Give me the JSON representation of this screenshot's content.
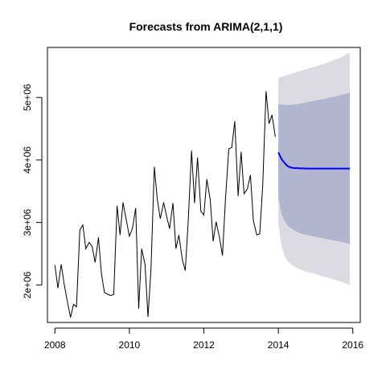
{
  "chart_data": {
    "type": "line",
    "title": "Forecasts from ARIMA(2,1,1)",
    "xlabel": "",
    "ylabel": "",
    "xlim": [
      2007.8,
      2016.2
    ],
    "ylim": [
      1400000,
      5800000
    ],
    "x_ticks": [
      2008,
      2010,
      2012,
      2014,
      2016
    ],
    "x_tick_labels": [
      "2008",
      "2010",
      "2012",
      "2014",
      "2016"
    ],
    "y_ticks": [
      2000000,
      3000000,
      4000000,
      5000000
    ],
    "y_tick_labels": [
      "2e+06",
      "3e+06",
      "4e+06",
      "5e+06"
    ],
    "grid": false,
    "legend": "none",
    "colors": {
      "series": "#000000",
      "forecast": "#0000ff",
      "band80": "#b1b5d0",
      "band95": "#dbdbe1"
    },
    "series": [
      {
        "role": "observed",
        "x": [
          2008.0,
          2008.08,
          2008.17,
          2008.25,
          2008.33,
          2008.42,
          2008.5,
          2008.58,
          2008.67,
          2008.75,
          2008.83,
          2008.92,
          2009.0,
          2009.08,
          2009.17,
          2009.25,
          2009.33,
          2009.42,
          2009.5,
          2009.58,
          2009.67,
          2009.75,
          2009.83,
          2009.92,
          2010.0,
          2010.08,
          2010.17,
          2010.25,
          2010.33,
          2010.42,
          2010.5,
          2010.58,
          2010.67,
          2010.75,
          2010.83,
          2010.92,
          2011.0,
          2011.08,
          2011.17,
          2011.25,
          2011.33,
          2011.42,
          2011.5,
          2011.58,
          2011.67,
          2011.75,
          2011.83,
          2011.92,
          2012.0,
          2012.08,
          2012.17,
          2012.25,
          2012.33,
          2012.42,
          2012.5,
          2012.58,
          2012.67,
          2012.75,
          2012.83,
          2012.92,
          2013.0,
          2013.08,
          2013.17,
          2013.25,
          2013.33,
          2013.42,
          2013.5,
          2013.58,
          2013.67,
          2013.75,
          2013.83,
          2013.92
        ],
        "values": [
          2320000,
          1950000,
          2330000,
          2010000,
          1750000,
          1480000,
          1690000,
          1650000,
          2880000,
          2960000,
          2580000,
          2680000,
          2620000,
          2360000,
          2760000,
          2180000,
          1880000,
          1850000,
          1830000,
          1850000,
          3270000,
          2800000,
          3320000,
          3030000,
          2780000,
          2900000,
          3230000,
          1620000,
          2580000,
          2330000,
          1490000,
          2250000,
          3890000,
          3370000,
          3060000,
          3320000,
          3100000,
          2900000,
          3310000,
          2580000,
          2800000,
          2410000,
          2230000,
          3020000,
          4150000,
          3310000,
          4040000,
          3180000,
          3120000,
          3690000,
          3370000,
          2700000,
          3010000,
          2760000,
          2470000,
          3370000,
          4180000,
          4200000,
          4620000,
          3420000,
          4130000,
          3460000,
          3540000,
          3760000,
          3030000,
          2800000,
          2820000,
          3580000,
          5100000,
          4580000,
          4720000,
          4370000
        ]
      },
      {
        "role": "forecast",
        "x": [
          2014.0,
          2014.08,
          2014.17,
          2014.25,
          2014.33,
          2014.42,
          2014.5,
          2014.58,
          2014.67,
          2014.75,
          2014.83,
          2014.92,
          2015.0,
          2015.08,
          2015.17,
          2015.25,
          2015.33,
          2015.42,
          2015.5,
          2015.58,
          2015.67,
          2015.75,
          2015.83,
          2015.92
        ],
        "values": [
          4120000,
          4020000,
          3950000,
          3900000,
          3880000,
          3870000,
          3870000,
          3865000,
          3865000,
          3862000,
          3862000,
          3862000,
          3862000,
          3862000,
          3862000,
          3862000,
          3862000,
          3862000,
          3862000,
          3862000,
          3862000,
          3862000,
          3862000,
          3862000
        ],
        "lo80": [
          3400000,
          3150000,
          3020000,
          2950000,
          2910000,
          2880000,
          2850000,
          2830000,
          2810000,
          2800000,
          2790000,
          2780000,
          2770000,
          2760000,
          2750000,
          2740000,
          2730000,
          2720000,
          2710000,
          2700000,
          2690000,
          2680000,
          2670000,
          2660000
        ],
        "hi80": [
          4890000,
          4890000,
          4880000,
          4880000,
          4880000,
          4890000,
          4890000,
          4900000,
          4910000,
          4920000,
          4930000,
          4940000,
          4950000,
          4960000,
          4970000,
          4980000,
          4990000,
          5000000,
          5010000,
          5020000,
          5040000,
          5050000,
          5060000,
          5080000
        ],
        "lo95": [
          2980000,
          2640000,
          2460000,
          2380000,
          2340000,
          2300000,
          2270000,
          2250000,
          2230000,
          2210000,
          2200000,
          2190000,
          2170000,
          2160000,
          2140000,
          2130000,
          2120000,
          2100000,
          2090000,
          2070000,
          2060000,
          2040000,
          2020000,
          2000000
        ],
        "hi95": [
          5310000,
          5330000,
          5340000,
          5360000,
          5380000,
          5390000,
          5410000,
          5420000,
          5440000,
          5450000,
          5470000,
          5480000,
          5500000,
          5510000,
          5530000,
          5540000,
          5560000,
          5580000,
          5600000,
          5620000,
          5640000,
          5660000,
          5690000,
          5720000
        ]
      }
    ]
  }
}
